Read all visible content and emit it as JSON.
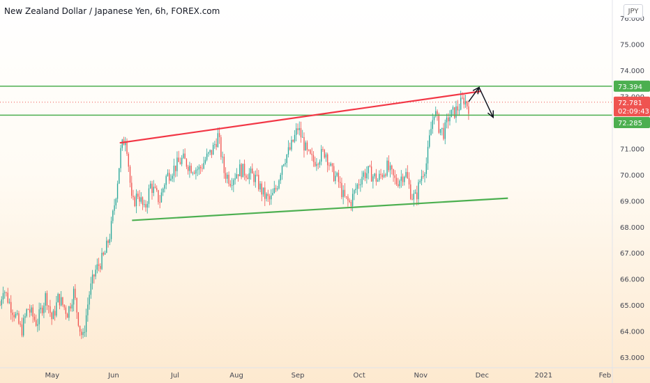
{
  "title": "New Zealand Dollar / Japanese Yen, 6h, FOREX.com",
  "currency_button": "JPY",
  "colors": {
    "up": "#26a69a",
    "down": "#ef5350",
    "support": "#4caf50",
    "resistance": "#f23645",
    "level": "#4caf50"
  },
  "chart_data": {
    "type": "candlestick",
    "symbol": "NZDJPY",
    "interval": "6h",
    "ylim": [
      62.6,
      76.7
    ],
    "y_ticks": [
      "76.000",
      "75.000",
      "74.000",
      "73.000",
      "72.000",
      "71.000",
      "70.000",
      "69.000",
      "68.000",
      "67.000",
      "66.000",
      "65.000",
      "64.000",
      "63.000"
    ],
    "x_ticks": [
      {
        "label": "May",
        "t": 4.0
      },
      {
        "label": "Jun",
        "t": 5.0
      },
      {
        "label": "Jul",
        "t": 6.0
      },
      {
        "label": "Aug",
        "t": 7.0
      },
      {
        "label": "Sep",
        "t": 8.0
      },
      {
        "label": "Oct",
        "t": 9.0
      },
      {
        "label": "Nov",
        "t": 10.0
      },
      {
        "label": "Dec",
        "t": 11.0
      },
      {
        "label": "2021",
        "t": 12.0
      },
      {
        "label": "Feb",
        "t": 13.0
      }
    ],
    "xlim": [
      3.15,
      13.12
    ],
    "price_path": [
      [
        3.15,
        65.0
      ],
      [
        3.2,
        65.7
      ],
      [
        3.3,
        65.1
      ],
      [
        3.4,
        64.6
      ],
      [
        3.5,
        64.0
      ],
      [
        3.6,
        64.9
      ],
      [
        3.75,
        64.3
      ],
      [
        3.9,
        65.4
      ],
      [
        4.0,
        64.4
      ],
      [
        4.1,
        65.3
      ],
      [
        4.25,
        64.7
      ],
      [
        4.35,
        65.5
      ],
      [
        4.45,
        64.1
      ],
      [
        4.5,
        63.7
      ],
      [
        4.6,
        65.4
      ],
      [
        4.7,
        66.3
      ],
      [
        4.85,
        66.9
      ],
      [
        4.95,
        67.8
      ],
      [
        5.05,
        69.5
      ],
      [
        5.12,
        71.0
      ],
      [
        5.2,
        71.5
      ],
      [
        5.25,
        70.2
      ],
      [
        5.3,
        68.8
      ],
      [
        5.4,
        69.3
      ],
      [
        5.5,
        68.6
      ],
      [
        5.6,
        69.6
      ],
      [
        5.75,
        69.0
      ],
      [
        5.85,
        69.9
      ],
      [
        6.0,
        70.3
      ],
      [
        6.12,
        70.6
      ],
      [
        6.25,
        70.3
      ],
      [
        6.4,
        70.2
      ],
      [
        6.5,
        70.6
      ],
      [
        6.6,
        70.9
      ],
      [
        6.7,
        71.5
      ],
      [
        6.8,
        70.1
      ],
      [
        6.9,
        69.8
      ],
      [
        7.05,
        70.2
      ],
      [
        7.15,
        70.1
      ],
      [
        7.3,
        69.9
      ],
      [
        7.45,
        69.2
      ],
      [
        7.55,
        69.0
      ],
      [
        7.65,
        69.5
      ],
      [
        7.75,
        70.5
      ],
      [
        7.88,
        71.0
      ],
      [
        8.0,
        71.8
      ],
      [
        8.08,
        71.3
      ],
      [
        8.15,
        70.8
      ],
      [
        8.25,
        70.5
      ],
      [
        8.35,
        70.7
      ],
      [
        8.45,
        70.9
      ],
      [
        8.55,
        70.1
      ],
      [
        8.65,
        69.8
      ],
      [
        8.75,
        69.1
      ],
      [
        8.85,
        68.9
      ],
      [
        8.95,
        69.5
      ],
      [
        9.05,
        70.0
      ],
      [
        9.15,
        70.1
      ],
      [
        9.3,
        69.8
      ],
      [
        9.45,
        70.3
      ],
      [
        9.6,
        69.7
      ],
      [
        9.75,
        70.1
      ],
      [
        9.85,
        69.2
      ],
      [
        9.92,
        69.1
      ],
      [
        10.0,
        69.9
      ],
      [
        10.1,
        70.5
      ],
      [
        10.15,
        71.5
      ],
      [
        10.22,
        72.5
      ],
      [
        10.3,
        71.8
      ],
      [
        10.38,
        71.6
      ],
      [
        10.45,
        72.2
      ],
      [
        10.55,
        72.4
      ],
      [
        10.62,
        72.6
      ],
      [
        10.7,
        72.9
      ],
      [
        10.78,
        72.6
      ]
    ],
    "horizontal_levels": [
      {
        "value": 73.394,
        "color": "level"
      },
      {
        "value": 72.285,
        "color": "level"
      }
    ],
    "last_price_line": 72.781,
    "trendlines": [
      {
        "name": "resistance",
        "color": "resistance",
        "from": [
          5.1,
          71.22
        ],
        "to": [
          10.98,
          73.2
        ]
      },
      {
        "name": "support",
        "color": "support",
        "from": [
          5.3,
          68.25
        ],
        "to": [
          11.42,
          69.1
        ]
      }
    ],
    "arrows": [
      {
        "name": "up",
        "from": [
          10.78,
          72.8
        ],
        "to": [
          10.95,
          73.35
        ]
      },
      {
        "name": "down",
        "from": [
          10.95,
          73.35
        ],
        "to": [
          11.18,
          72.2
        ]
      }
    ],
    "price_tags": [
      {
        "label": "73.394",
        "value": 73.394,
        "color": "level"
      },
      {
        "label": "72.781",
        "value": 72.781,
        "color": "down"
      },
      {
        "label": "02:09:43",
        "value": 72.45,
        "color": "down"
      },
      {
        "label": "72.285",
        "value": 72.0,
        "color": "level"
      }
    ]
  }
}
